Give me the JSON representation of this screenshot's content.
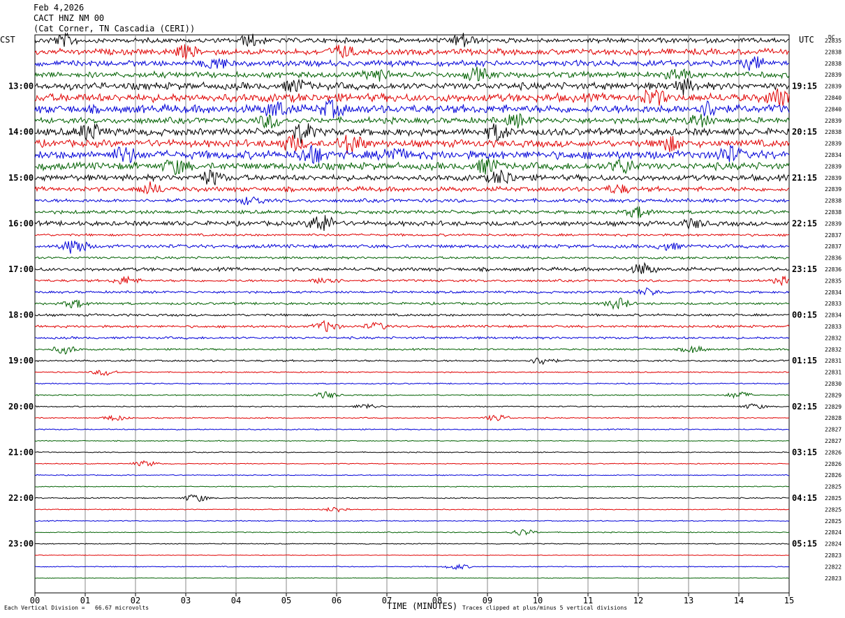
{
  "header": {
    "line1": "Feb 4,2026",
    "line2": "CACT HNZ NM 00",
    "line3": "(Cat Corner, TN Cascadia (CERI))"
  },
  "corner": {
    "left": "CST",
    "right": "UTC",
    "dc": "DC"
  },
  "footer": {
    "division_note": "Each Vertical Division =   66.67 microvolts",
    "clip_note": "Traces clipped at plus/minus 5 vertical divisions",
    "xlabel": "TIME (MINUTES)"
  },
  "colors": {
    "cycle": [
      "#000000",
      "#e00000",
      "#0000d8",
      "#006000"
    ],
    "grid": "#888888"
  },
  "chart_data": {
    "type": "line",
    "xlim": [
      0,
      15
    ],
    "x_ticks": [
      "00",
      "01",
      "02",
      "03",
      "04",
      "05",
      "06",
      "07",
      "08",
      "09",
      "10",
      "11",
      "12",
      "13",
      "14",
      "15"
    ],
    "left_labels": [
      {
        "row": 4,
        "text": "13:00"
      },
      {
        "row": 8,
        "text": "14:00"
      },
      {
        "row": 12,
        "text": "15:00"
      },
      {
        "row": 16,
        "text": "16:00"
      },
      {
        "row": 20,
        "text": "17:00"
      },
      {
        "row": 24,
        "text": "18:00"
      },
      {
        "row": 28,
        "text": "19:00"
      },
      {
        "row": 32,
        "text": "20:00"
      },
      {
        "row": 36,
        "text": "21:00"
      },
      {
        "row": 40,
        "text": "22:00"
      },
      {
        "row": 44,
        "text": "23:00"
      }
    ],
    "right_labels": [
      {
        "row": 4,
        "text": "19:15"
      },
      {
        "row": 8,
        "text": "20:15"
      },
      {
        "row": 12,
        "text": "21:15"
      },
      {
        "row": 16,
        "text": "22:15"
      },
      {
        "row": 20,
        "text": "23:15"
      },
      {
        "row": 24,
        "text": "00:15"
      },
      {
        "row": 28,
        "text": "01:15"
      },
      {
        "row": 32,
        "text": "02:15"
      },
      {
        "row": 36,
        "text": "03:15"
      },
      {
        "row": 40,
        "text": "04:15"
      },
      {
        "row": 44,
        "text": "05:15"
      }
    ],
    "dc_values": [
      "22835",
      "22838",
      "22838",
      "22839",
      "22839",
      "22840",
      "22840",
      "22839",
      "22838",
      "22839",
      "22834",
      "22839",
      "22839",
      "22839",
      "22838",
      "22838",
      "22839",
      "22837",
      "22837",
      "22836",
      "22836",
      "22835",
      "22834",
      "22833",
      "22834",
      "22833",
      "22832",
      "22832",
      "22831",
      "22831",
      "22830",
      "22829",
      "22829",
      "22828",
      "22827",
      "22827",
      "22826",
      "22826",
      "22826",
      "22825",
      "22825",
      "22825",
      "22825",
      "22824",
      "22824",
      "22823",
      "22822",
      "22823"
    ],
    "amplitude": [
      4,
      5,
      5,
      5,
      6,
      7,
      7,
      5,
      6,
      6,
      7,
      6,
      5,
      4,
      3,
      3,
      4,
      2,
      3,
      2,
      3,
      2,
      2,
      2,
      2,
      2,
      2,
      1.5,
      1.5,
      1,
      1,
      1,
      1,
      1,
      1,
      0.8,
      0.8,
      0.8,
      0.8,
      0.8,
      1,
      0.8,
      0.8,
      0.8,
      0.8,
      0.5,
      0.8,
      0.5
    ],
    "bursts": [
      {
        "row": 0,
        "x": 0.6,
        "amp": 8
      },
      {
        "row": 0,
        "x": 4.3,
        "amp": 8
      },
      {
        "row": 0,
        "x": 8.5,
        "amp": 10
      },
      {
        "row": 1,
        "x": 3.0,
        "amp": 8
      },
      {
        "row": 1,
        "x": 6.1,
        "amp": 8
      },
      {
        "row": 2,
        "x": 3.6,
        "amp": 8
      },
      {
        "row": 2,
        "x": 14.3,
        "amp": 8
      },
      {
        "row": 3,
        "x": 6.8,
        "amp": 8
      },
      {
        "row": 3,
        "x": 8.8,
        "amp": 8
      },
      {
        "row": 3,
        "x": 12.8,
        "amp": 8
      },
      {
        "row": 4,
        "x": 5.2,
        "amp": 8
      },
      {
        "row": 4,
        "x": 12.9,
        "amp": 8
      },
      {
        "row": 5,
        "x": 12.3,
        "amp": 10
      },
      {
        "row": 5,
        "x": 14.8,
        "amp": 10
      },
      {
        "row": 6,
        "x": 4.8,
        "amp": 10
      },
      {
        "row": 6,
        "x": 5.9,
        "amp": 10
      },
      {
        "row": 6,
        "x": 13.4,
        "amp": 10
      },
      {
        "row": 7,
        "x": 4.7,
        "amp": 10
      },
      {
        "row": 7,
        "x": 9.6,
        "amp": 8
      },
      {
        "row": 7,
        "x": 13.2,
        "amp": 8
      },
      {
        "row": 8,
        "x": 1.1,
        "amp": 12
      },
      {
        "row": 8,
        "x": 5.3,
        "amp": 12
      },
      {
        "row": 8,
        "x": 9.2,
        "amp": 10
      },
      {
        "row": 9,
        "x": 5.1,
        "amp": 10
      },
      {
        "row": 9,
        "x": 6.3,
        "amp": 14
      },
      {
        "row": 9,
        "x": 12.6,
        "amp": 10
      },
      {
        "row": 10,
        "x": 1.8,
        "amp": 10
      },
      {
        "row": 10,
        "x": 5.5,
        "amp": 12
      },
      {
        "row": 10,
        "x": 7.1,
        "amp": 10
      },
      {
        "row": 10,
        "x": 13.8,
        "amp": 10
      },
      {
        "row": 11,
        "x": 2.8,
        "amp": 10
      },
      {
        "row": 11,
        "x": 9.0,
        "amp": 10
      },
      {
        "row": 11,
        "x": 11.7,
        "amp": 10
      },
      {
        "row": 12,
        "x": 3.5,
        "amp": 10
      },
      {
        "row": 12,
        "x": 9.3,
        "amp": 10
      },
      {
        "row": 13,
        "x": 2.3,
        "amp": 8
      },
      {
        "row": 13,
        "x": 11.6,
        "amp": 6
      },
      {
        "row": 14,
        "x": 4.3,
        "amp": 6
      },
      {
        "row": 15,
        "x": 12.0,
        "amp": 8
      },
      {
        "row": 16,
        "x": 5.7,
        "amp": 14
      },
      {
        "row": 16,
        "x": 13.1,
        "amp": 6
      },
      {
        "row": 18,
        "x": 0.8,
        "amp": 12
      },
      {
        "row": 18,
        "x": 12.6,
        "amp": 5
      },
      {
        "row": 20,
        "x": 12.1,
        "amp": 8
      },
      {
        "row": 21,
        "x": 1.8,
        "amp": 6
      },
      {
        "row": 21,
        "x": 5.8,
        "amp": 6
      },
      {
        "row": 21,
        "x": 14.9,
        "amp": 5
      },
      {
        "row": 22,
        "x": 12.2,
        "amp": 5
      },
      {
        "row": 23,
        "x": 0.8,
        "amp": 6
      },
      {
        "row": 23,
        "x": 11.6,
        "amp": 8
      },
      {
        "row": 25,
        "x": 5.8,
        "amp": 8
      },
      {
        "row": 25,
        "x": 6.8,
        "amp": 5
      },
      {
        "row": 27,
        "x": 0.6,
        "amp": 6
      },
      {
        "row": 27,
        "x": 13.1,
        "amp": 5
      },
      {
        "row": 28,
        "x": 10.1,
        "amp": 6
      },
      {
        "row": 29,
        "x": 1.4,
        "amp": 5
      },
      {
        "row": 31,
        "x": 5.8,
        "amp": 5
      },
      {
        "row": 31,
        "x": 14.0,
        "amp": 5
      },
      {
        "row": 32,
        "x": 6.6,
        "amp": 4
      },
      {
        "row": 32,
        "x": 14.3,
        "amp": 4
      },
      {
        "row": 33,
        "x": 9.2,
        "amp": 5
      },
      {
        "row": 33,
        "x": 1.6,
        "amp": 4
      },
      {
        "row": 37,
        "x": 2.2,
        "amp": 4
      },
      {
        "row": 40,
        "x": 3.2,
        "amp": 6
      },
      {
        "row": 41,
        "x": 6.0,
        "amp": 4
      },
      {
        "row": 43,
        "x": 9.7,
        "amp": 5
      },
      {
        "row": 46,
        "x": 8.4,
        "amp": 4
      }
    ]
  }
}
